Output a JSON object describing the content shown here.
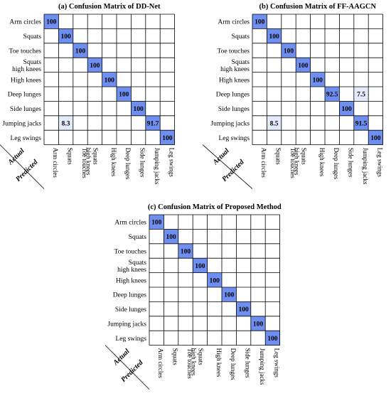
{
  "colors": {
    "full": "#6f8ff0",
    "partial": "#e3eafc",
    "grid": "#000000"
  },
  "corner": {
    "actual": "Actual",
    "predicted": "Predicted"
  },
  "chart_data": [
    {
      "type": "heatmap",
      "title": "(a) Confusion Matrix of DD-Net",
      "rows": [
        "Arm circles",
        "Squats",
        "Toe touches",
        "Squats high knees",
        "High knees",
        "Deep lunges",
        "Side lunges",
        "Jumping jacks",
        "Leg swings"
      ],
      "columns": [
        "Arm circles",
        "Squats",
        "Toe touches",
        "Squats high knees",
        "High knees",
        "Deep lunges",
        "Side lunges",
        "Jumping jacks",
        "Leg swings"
      ],
      "values": [
        [
          100,
          0,
          0,
          0,
          0,
          0,
          0,
          0,
          0
        ],
        [
          0,
          100,
          0,
          0,
          0,
          0,
          0,
          0,
          0
        ],
        [
          0,
          0,
          100,
          0,
          0,
          0,
          0,
          0,
          0
        ],
        [
          0,
          0,
          0,
          100,
          0,
          0,
          0,
          0,
          0
        ],
        [
          0,
          0,
          0,
          0,
          100,
          0,
          0,
          0,
          0
        ],
        [
          0,
          0,
          0,
          0,
          0,
          100,
          0,
          0,
          0
        ],
        [
          0,
          0,
          0,
          0,
          0,
          0,
          100,
          0,
          0
        ],
        [
          0,
          8.3,
          0,
          0,
          0,
          0,
          0,
          91.7,
          0
        ],
        [
          0,
          0,
          0,
          0,
          0,
          0,
          0,
          0,
          100
        ]
      ]
    },
    {
      "type": "heatmap",
      "title": "(b) Confusion Matrix of FF-AAGCN",
      "rows": [
        "Arm circles",
        "Squats",
        "Toe touches",
        "Squats high knees",
        "High knees",
        "Deep lunges",
        "Side lunges",
        "Jumping jacks",
        "Leg swings"
      ],
      "columns": [
        "Arm circles",
        "Squats",
        "Toe touches",
        "Squats high knees",
        "High knees",
        "Deep lunges",
        "Side lunges",
        "Jumping jacks",
        "Leg swings"
      ],
      "values": [
        [
          100,
          0,
          0,
          0,
          0,
          0,
          0,
          0,
          0
        ],
        [
          0,
          100,
          0,
          0,
          0,
          0,
          0,
          0,
          0
        ],
        [
          0,
          0,
          100,
          0,
          0,
          0,
          0,
          0,
          0
        ],
        [
          0,
          0,
          0,
          100,
          0,
          0,
          0,
          0,
          0
        ],
        [
          0,
          0,
          0,
          0,
          100,
          0,
          0,
          0,
          0
        ],
        [
          0,
          0,
          0,
          0,
          0,
          92.5,
          0,
          7.5,
          0
        ],
        [
          0,
          0,
          0,
          0,
          0,
          0,
          100,
          0,
          0
        ],
        [
          0,
          8.5,
          0,
          0,
          0,
          0,
          0,
          91.5,
          0
        ],
        [
          0,
          0,
          0,
          0,
          0,
          0,
          0,
          0,
          100
        ]
      ]
    },
    {
      "type": "heatmap",
      "title": "(c) Confusion Matrix of Proposed Method",
      "rows": [
        "Arm circles",
        "Squats",
        "Toe touches",
        "Squats high knees",
        "High knees",
        "Deep lunges",
        "Side lunges",
        "Jumping jacks",
        "Leg swings"
      ],
      "columns": [
        "Arm circles",
        "Squats",
        "Toe touches",
        "Squats high knees",
        "High knees",
        "Deep lunges",
        "Side lunges",
        "Jumping jacks",
        "Leg swings"
      ],
      "values": [
        [
          100,
          0,
          0,
          0,
          0,
          0,
          0,
          0,
          0
        ],
        [
          0,
          100,
          0,
          0,
          0,
          0,
          0,
          0,
          0
        ],
        [
          0,
          0,
          100,
          0,
          0,
          0,
          0,
          0,
          0
        ],
        [
          0,
          0,
          0,
          100,
          0,
          0,
          0,
          0,
          0
        ],
        [
          0,
          0,
          0,
          0,
          100,
          0,
          0,
          0,
          0
        ],
        [
          0,
          0,
          0,
          0,
          0,
          100,
          0,
          0,
          0
        ],
        [
          0,
          0,
          0,
          0,
          0,
          0,
          100,
          0,
          0
        ],
        [
          0,
          0,
          0,
          0,
          0,
          0,
          0,
          100,
          0
        ],
        [
          0,
          0,
          0,
          0,
          0,
          0,
          0,
          0,
          100
        ]
      ]
    }
  ]
}
